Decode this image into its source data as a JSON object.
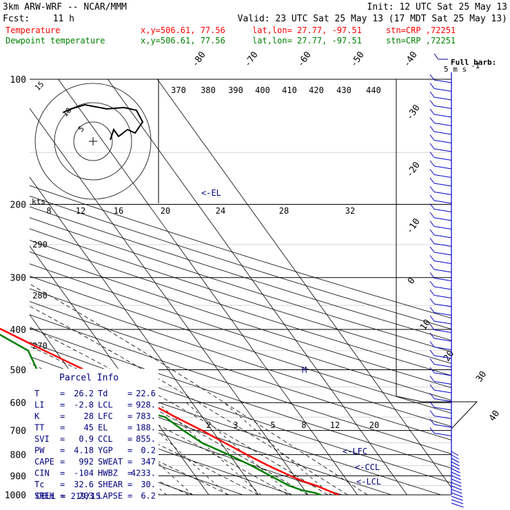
{
  "header": {
    "model": "3km ARW-WRF -- NCAR/MMM",
    "init": "Init: 12 UTC Sat 25 May 13",
    "fcst_label": "Fcst:",
    "fcst_value": "11 h",
    "valid": "Valid: 23 UTC Sat 25 May 13 (17 MDT Sat 25 May 13)",
    "temp_label": "Temperature",
    "dew_label": "Dewpoint temperature",
    "xy": "x,y=506.61, 77.56",
    "latlon": "lat,lon= 27.77, -97.51",
    "stn": "stn=CRP ,72251"
  },
  "colors": {
    "temperature": "#ff0000",
    "dewpoint": "#008000",
    "wind": "#0000cc",
    "label_blue": "#000080",
    "grid": "#000000",
    "hodo": "#000000"
  },
  "wind_legend": {
    "line1": "Full barb:",
    "line2": "5 m s",
    "exp": "-1"
  },
  "parcel": {
    "title": "Parcel Info",
    "rows": [
      {
        "k1": "T",
        "v1": "26.2",
        "k2": "Td",
        "v2": "22.6"
      },
      {
        "k1": "LI",
        "v1": "-2.8",
        "k2": "LCL",
        "v2": "928."
      },
      {
        "k1": "K",
        "v1": "28",
        "k2": "LFC",
        "v2": "783."
      },
      {
        "k1": "TT",
        "v1": "45",
        "k2": "EL",
        "v2": "188."
      },
      {
        "k1": "SVI",
        "v1": "0.9",
        "k2": "CCL",
        "v2": "855."
      },
      {
        "k1": "PW",
        "v1": "4.18",
        "k2": "YGP",
        "v2": "0.2"
      },
      {
        "k1": "CAPE",
        "v1": "992",
        "k2": "SWEAT",
        "v2": "347"
      },
      {
        "k1": "CIN",
        "v1": "-104",
        "k2": "HWBZ",
        "v2": "4233."
      },
      {
        "k1": "Tc",
        "v1": "32.6",
        "k2": "SHEAR",
        "v2": "30."
      },
      {
        "k1": "SREH",
        "v1": "203",
        "k2": "LAPSE",
        "v2": "6.2"
      }
    ],
    "cell": "CELL = 219/15"
  },
  "level_markers": {
    "el": "<-EL",
    "lfc": "<-LFC",
    "ccl": "<-CCL",
    "lcl": "<-LCL",
    "m": "M"
  },
  "hodograph": {
    "kts_label": "kts",
    "rings": [
      "5",
      "10",
      "15"
    ]
  },
  "chart_data": {
    "type": "line",
    "title": "",
    "y_axis": "pressure (hPa), log scale",
    "pressure_ticks": [
      100,
      200,
      300,
      400,
      500,
      600,
      700,
      800,
      900,
      1000
    ],
    "pressure_labels": [
      "100",
      "200",
      "300",
      "400",
      "500",
      "600",
      "700",
      "800",
      "900",
      "1000"
    ],
    "isotherm_labels": [
      "-80",
      "-70",
      "-60",
      "-50",
      "-40",
      "-30",
      "-20",
      "-10",
      "0",
      "10",
      "20",
      "30",
      "40"
    ],
    "theta_labels": [
      "370",
      "380",
      "390",
      "400",
      "410",
      "420",
      "430",
      "440"
    ],
    "theta_left_labels": [
      "290",
      "280",
      "270"
    ],
    "theta_e_labels": [
      "8",
      "12",
      "16",
      "20",
      "24",
      "28",
      "32"
    ],
    "mixing_ratio_labels": [
      "2",
      "3",
      "5",
      "8",
      "12",
      "20"
    ],
    "series": [
      {
        "name": "Temperature",
        "points": [
          [
            1000,
            26.2
          ],
          [
            990,
            25.5
          ],
          [
            975,
            24.6
          ],
          [
            950,
            23.0
          ],
          [
            928,
            21.0
          ],
          [
            900,
            19.2
          ],
          [
            850,
            16.2
          ],
          [
            800,
            13.5
          ],
          [
            750,
            10.8
          ],
          [
            700,
            8.0
          ],
          [
            650,
            4.6
          ],
          [
            600,
            1.2
          ],
          [
            550,
            -2.8
          ],
          [
            500,
            -7.0
          ],
          [
            450,
            -12.2
          ],
          [
            400,
            -17.8
          ],
          [
            350,
            -24.5
          ],
          [
            300,
            -33.0
          ],
          [
            250,
            -43.0
          ],
          [
            225,
            -49.0
          ],
          [
            200,
            -55.5
          ],
          [
            188,
            -58.0
          ],
          [
            175,
            -61.5
          ],
          [
            150,
            -64.5
          ],
          [
            125,
            -66.5
          ],
          [
            100,
            -70.5
          ]
        ]
      },
      {
        "name": "Dewpoint temperature",
        "points": [
          [
            1000,
            22.6
          ],
          [
            990,
            21.8
          ],
          [
            975,
            19.5
          ],
          [
            950,
            17.5
          ],
          [
            900,
            15.2
          ],
          [
            850,
            12.8
          ],
          [
            800,
            9.8
          ],
          [
            750,
            6.2
          ],
          [
            700,
            4.2
          ],
          [
            650,
            2.5
          ],
          [
            600,
            -6.5
          ],
          [
            550,
            -15.5
          ],
          [
            500,
            -16.5
          ],
          [
            450,
            -15.5
          ],
          [
            400,
            -20.0
          ],
          [
            350,
            -23.0
          ],
          [
            300,
            -26.8
          ],
          [
            250,
            -36.5
          ],
          [
            200,
            -47.5
          ],
          [
            175,
            -67.0
          ],
          [
            150,
            -79.0
          ],
          [
            125,
            -86.0
          ],
          [
            100,
            -91.0
          ]
        ]
      }
    ],
    "wind_barbs": [
      {
        "p": 1000,
        "count": 6
      },
      {
        "p": 900,
        "count": 3
      },
      {
        "p": 800,
        "count": 2
      },
      {
        "p": 700,
        "count": 1
      },
      {
        "p": 600,
        "count": 1
      },
      {
        "p": 500,
        "count": 2
      },
      {
        "p": 400,
        "count": 2
      },
      {
        "p": 300,
        "count": 3
      },
      {
        "p": 200,
        "count": 3
      },
      {
        "p": 100,
        "count": 3
      }
    ],
    "hodograph_trace": [
      [
        0,
        0
      ],
      [
        2,
        3
      ],
      [
        4,
        5
      ],
      [
        6,
        6
      ],
      [
        7,
        5
      ],
      [
        8,
        7
      ],
      [
        9,
        10
      ],
      [
        8,
        13
      ],
      [
        5,
        14
      ],
      [
        3,
        13
      ],
      [
        1,
        12
      ]
    ],
    "grid": true,
    "y_scale": "log"
  }
}
